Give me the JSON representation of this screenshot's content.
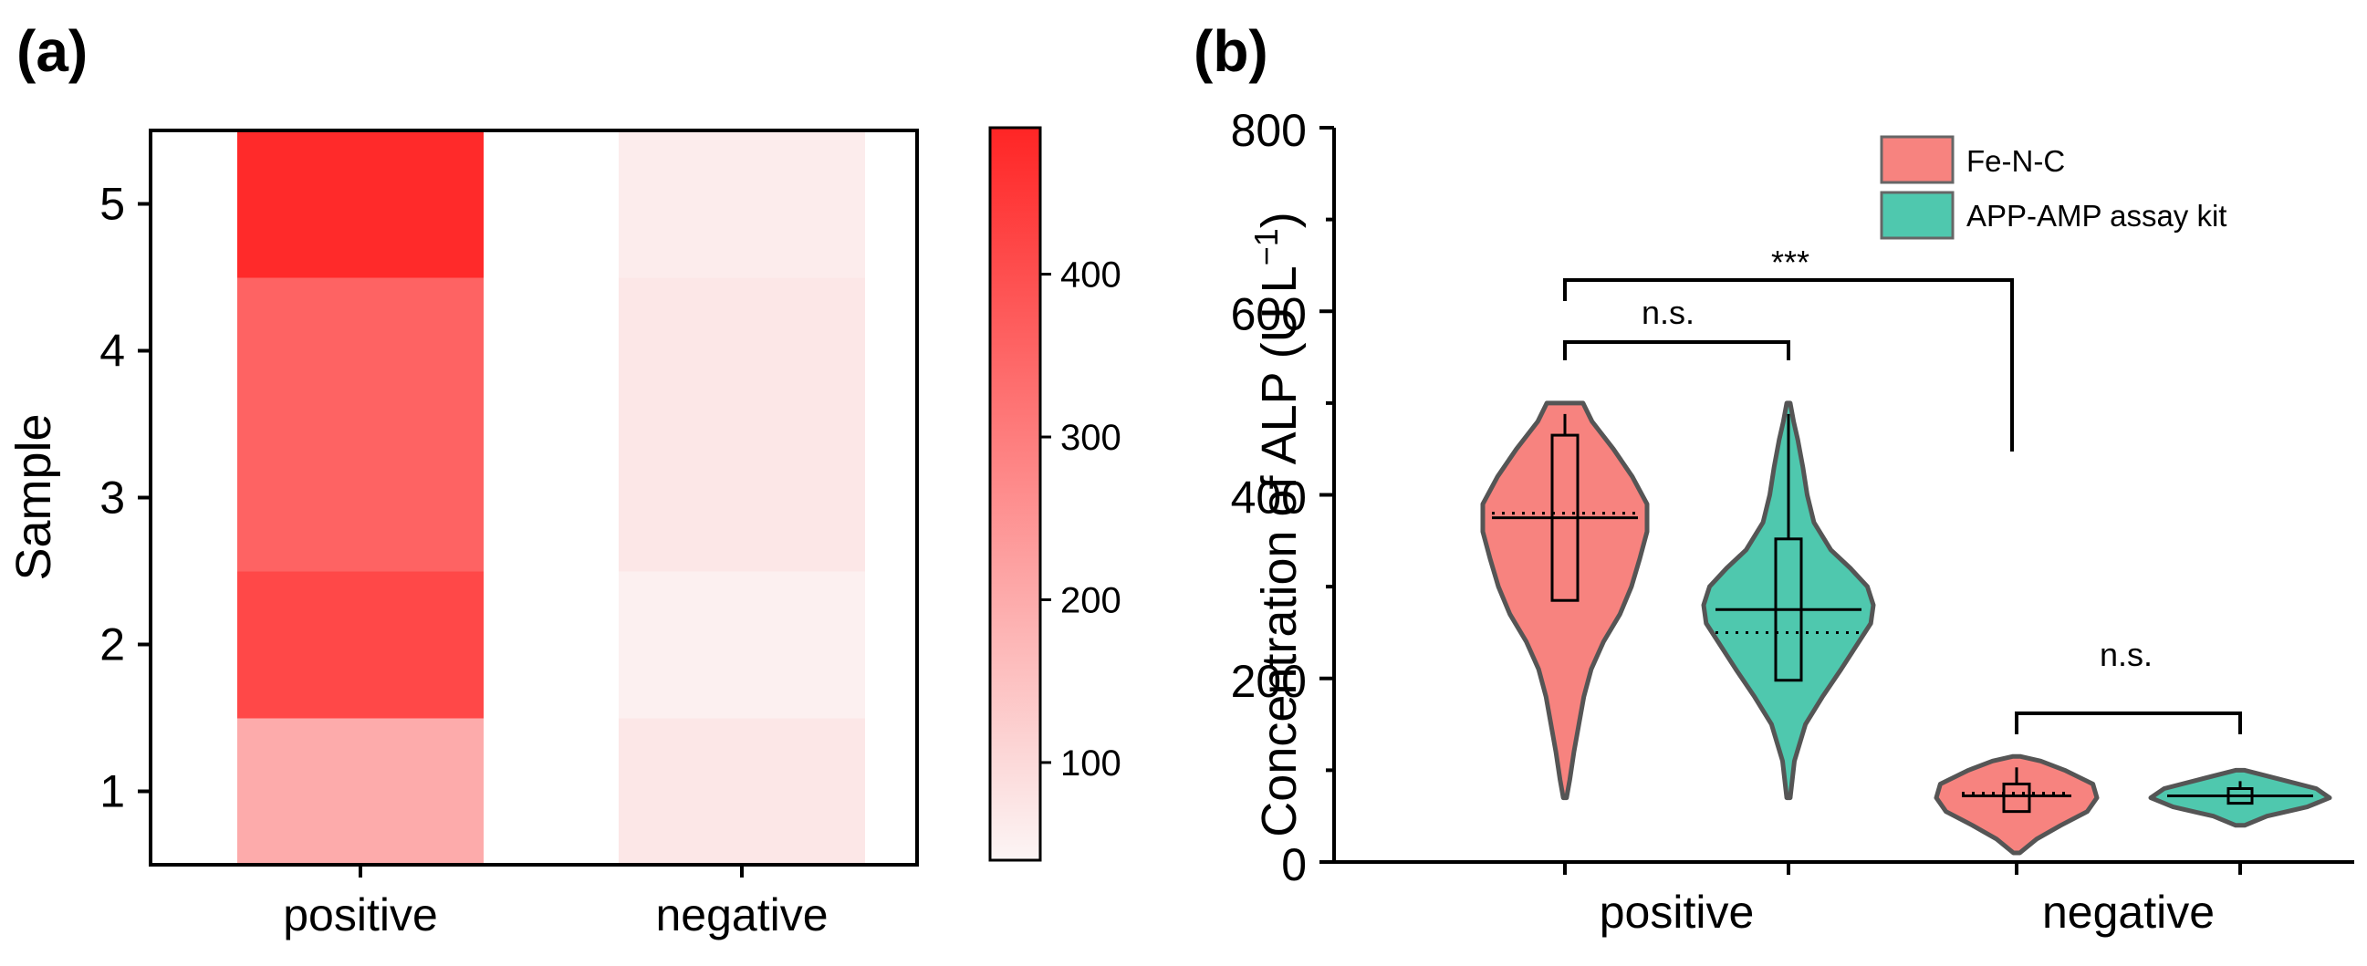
{
  "chart_data": [
    {
      "panel": "(a)",
      "type": "heatmap",
      "xlabel": "",
      "ylabel": "Sample",
      "categories": [
        "positive",
        "negative"
      ],
      "samples": [
        "1",
        "2",
        "3",
        "4",
        "5"
      ],
      "values": {
        "positive": [
          200,
          415,
          355,
          355,
          480
        ],
        "negative": [
          70,
          50,
          70,
          70,
          60
        ]
      },
      "colorbar": {
        "min": 40,
        "max": 490,
        "ticks": [
          "100",
          "200",
          "300",
          "400"
        ],
        "tick_values": [
          100,
          200,
          300,
          400
        ]
      },
      "colors": {
        "low": "#fcf5f5",
        "high": "#ff2525"
      }
    },
    {
      "panel": "(b)",
      "type": "violin",
      "xlabel": "",
      "ylabel": "Concentration of ALP (U L",
      "ylabel_sup": "−1",
      "ylabel_close": ")",
      "ylim": [
        0,
        800
      ],
      "yticks": [
        "0",
        "200",
        "400",
        "600",
        "800"
      ],
      "ytick_values": [
        0,
        200,
        400,
        600,
        800
      ],
      "categories": [
        "positive",
        "negative"
      ],
      "legend": [
        {
          "name": "Fe-N-C",
          "color": "#f7837f"
        },
        {
          "name": "APP-AMP assay kit",
          "color": "#4fc8ae"
        }
      ],
      "series": [
        {
          "name": "Fe-N-C",
          "group": "positive",
          "color": "#f7837f",
          "min": 70,
          "max": 500,
          "median": 375,
          "mean": 380,
          "q1": 285,
          "q3": 465,
          "profile": [
            [
              70,
              0.02
            ],
            [
              90,
              0.06
            ],
            [
              120,
              0.11
            ],
            [
              150,
              0.17
            ],
            [
              180,
              0.23
            ],
            [
              210,
              0.32
            ],
            [
              240,
              0.47
            ],
            [
              270,
              0.67
            ],
            [
              300,
              0.81
            ],
            [
              330,
              0.91
            ],
            [
              360,
              1.0
            ],
            [
              390,
              1.0
            ],
            [
              420,
              0.82
            ],
            [
              450,
              0.59
            ],
            [
              480,
              0.33
            ],
            [
              500,
              0.22
            ]
          ]
        },
        {
          "name": "APP-AMP assay kit",
          "group": "positive",
          "color": "#4fc8ae",
          "min": 70,
          "max": 500,
          "median": 275,
          "mean": 250,
          "q1": 198,
          "q3": 352,
          "profile": [
            [
              70,
              0.02
            ],
            [
              110,
              0.07
            ],
            [
              150,
              0.2
            ],
            [
              180,
              0.4
            ],
            [
              210,
              0.62
            ],
            [
              240,
              0.83
            ],
            [
              260,
              0.97
            ],
            [
              280,
              1.0
            ],
            [
              300,
              0.93
            ],
            [
              320,
              0.73
            ],
            [
              340,
              0.5
            ],
            [
              370,
              0.3
            ],
            [
              400,
              0.22
            ],
            [
              430,
              0.17
            ],
            [
              460,
              0.11
            ],
            [
              480,
              0.06
            ],
            [
              500,
              0.02
            ]
          ]
        },
        {
          "name": "Fe-N-C",
          "group": "negative",
          "color": "#f7837f",
          "min": 10,
          "max": 115,
          "median": 72,
          "mean": 75,
          "q1": 55,
          "q3": 85,
          "profile": [
            [
              10,
              0.04
            ],
            [
              25,
              0.25
            ],
            [
              40,
              0.55
            ],
            [
              55,
              0.88
            ],
            [
              70,
              1.0
            ],
            [
              85,
              0.95
            ],
            [
              100,
              0.6
            ],
            [
              110,
              0.3
            ],
            [
              115,
              0.05
            ]
          ]
        },
        {
          "name": "APP-AMP assay kit",
          "group": "negative",
          "color": "#4fc8ae",
          "min": 40,
          "max": 100,
          "median": 72,
          "mean": 72,
          "q1": 64,
          "q3": 80,
          "profile": [
            [
              40,
              0.05
            ],
            [
              50,
              0.3
            ],
            [
              60,
              0.75
            ],
            [
              70,
              1.0
            ],
            [
              80,
              0.85
            ],
            [
              90,
              0.45
            ],
            [
              100,
              0.05
            ]
          ]
        }
      ],
      "annotations": [
        {
          "text": "n.s.",
          "between": "positive Fe-N-C vs positive APP-AMP assay kit"
        },
        {
          "text": "***",
          "between": "positive Fe-N-C vs negative Fe-N-C"
        },
        {
          "text": "n.s.",
          "between": "negative Fe-N-C vs negative APP-AMP assay kit"
        }
      ]
    }
  ]
}
